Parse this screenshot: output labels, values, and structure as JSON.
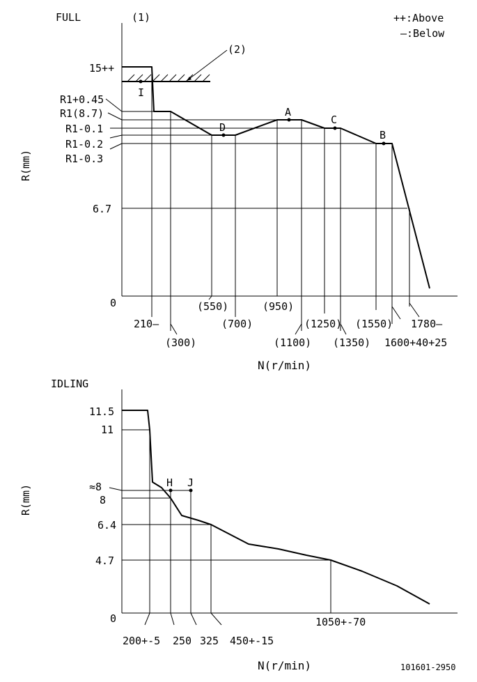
{
  "full": {
    "title": "FULL",
    "note1": "(1)",
    "note2": "(2)",
    "legend_above": "++:Above",
    "legend_below": "—:Below",
    "y_axis_label": "R(mm)",
    "x_axis_label": "N(r/min)",
    "y_ticks": {
      "y15": "15++",
      "r1p045": "R1+0.45",
      "r1": "R1(8.7)",
      "r1m01": "R1-0.1",
      "r1m02": "R1-0.2",
      "r1m03": "R1-0.3",
      "y67": "6.7",
      "y0": "0"
    },
    "x_ticks": {
      "x210": "210—",
      "x300": "(300)",
      "x550": "(550)",
      "x700": "(700)",
      "x950": "(950)",
      "x1100": "(1100)",
      "x1250": "(1250)",
      "x1350": "(1350)",
      "x1550": "(1550)",
      "x1600": "1600+40+25",
      "x1780": "1780—"
    },
    "points": {
      "I": "I",
      "D": "D",
      "A": "A",
      "C": "C",
      "B": "B"
    }
  },
  "idling": {
    "title": "IDLING",
    "y_axis_label": "R(mm)",
    "x_axis_label": "N(r/min)",
    "y_ticks": {
      "y115": "11.5",
      "y11": "11",
      "yapprox8": "≈8",
      "y8": "8",
      "y64": "6.4",
      "y47": "4.7",
      "y0": "0"
    },
    "x_ticks": {
      "x200": "200+-5",
      "x250": "250",
      "x325": "325",
      "x450": "450+-15",
      "x1050": "1050+-70"
    },
    "points": {
      "H": "H",
      "J": "J"
    }
  },
  "drawing_code": "101601-2950"
}
